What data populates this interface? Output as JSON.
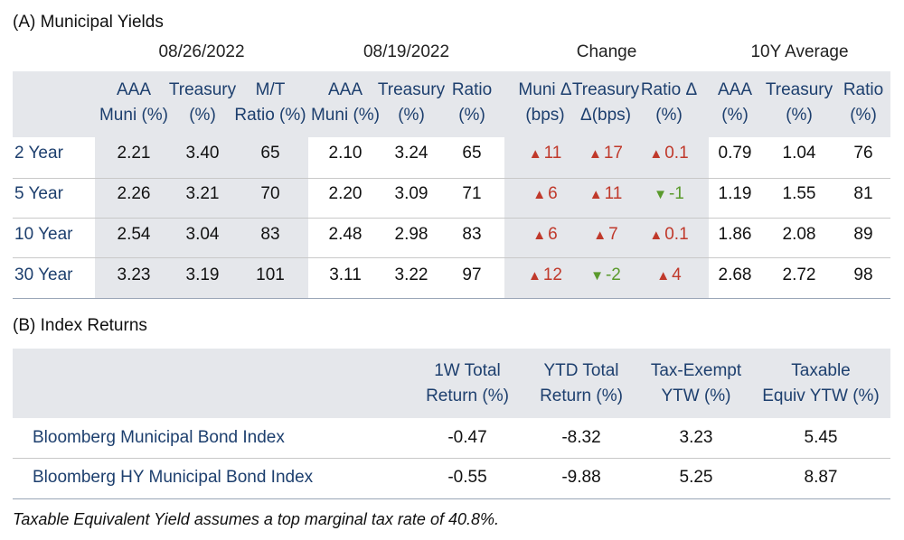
{
  "section_a": {
    "title": "(A) Municipal Yields",
    "groups": [
      "08/26/2022",
      "08/19/2022",
      "Change",
      "10Y Average"
    ],
    "headers": [
      [
        "AAA",
        "Muni (%)"
      ],
      [
        "Treasury",
        "(%)"
      ],
      [
        "M/T",
        "Ratio (%)"
      ],
      [
        "AAA",
        "Muni (%)"
      ],
      [
        "Treasury",
        "(%)"
      ],
      [
        "Ratio",
        "(%)"
      ],
      [
        "Muni Δ",
        "(bps)"
      ],
      [
        "Treasury",
        "Δ(bps)"
      ],
      [
        "Ratio Δ",
        "(%)"
      ],
      [
        "AAA",
        "(%)"
      ],
      [
        "Treasury",
        "(%)"
      ],
      [
        "Ratio",
        "(%)"
      ]
    ],
    "rows": [
      {
        "label": "2 Year",
        "v": [
          "2.21",
          "3.40",
          "65",
          "2.10",
          "3.24",
          "65"
        ],
        "chg": [
          {
            "dir": "up",
            "val": "11"
          },
          {
            "dir": "up",
            "val": "17"
          },
          {
            "dir": "up",
            "val": "0.1"
          }
        ],
        "avg": [
          "0.79",
          "1.04",
          "76"
        ]
      },
      {
        "label": "5 Year",
        "v": [
          "2.26",
          "3.21",
          "70",
          "2.20",
          "3.09",
          "71"
        ],
        "chg": [
          {
            "dir": "up",
            "val": "6"
          },
          {
            "dir": "up",
            "val": "11"
          },
          {
            "dir": "down",
            "val": "-1"
          }
        ],
        "avg": [
          "1.19",
          "1.55",
          "81"
        ]
      },
      {
        "label": "10 Year",
        "v": [
          "2.54",
          "3.04",
          "83",
          "2.48",
          "2.98",
          "83"
        ],
        "chg": [
          {
            "dir": "up",
            "val": "6"
          },
          {
            "dir": "up",
            "val": "7"
          },
          {
            "dir": "up",
            "val": "0.1"
          }
        ],
        "avg": [
          "1.86",
          "2.08",
          "89"
        ]
      },
      {
        "label": "30 Year",
        "v": [
          "3.23",
          "3.19",
          "101",
          "3.11",
          "3.22",
          "97"
        ],
        "chg": [
          {
            "dir": "up",
            "val": "12"
          },
          {
            "dir": "down",
            "val": "-2"
          },
          {
            "dir": "up",
            "val": "4"
          }
        ],
        "avg": [
          "2.68",
          "2.72",
          "98"
        ]
      }
    ]
  },
  "section_b": {
    "title": "(B) Index Returns",
    "headers": [
      [
        "1W Total",
        "Return (%)"
      ],
      [
        "YTD Total",
        "Return (%)"
      ],
      [
        "Tax-Exempt",
        "YTW (%)"
      ],
      [
        "Taxable",
        "Equiv YTW (%)"
      ]
    ],
    "rows": [
      {
        "label": "Bloomberg Municipal Bond Index",
        "v": [
          "-0.47",
          "-8.32",
          "3.23",
          "5.45"
        ]
      },
      {
        "label": "Bloomberg HY Municipal Bond Index",
        "v": [
          "-0.55",
          "-9.88",
          "5.25",
          "8.87"
        ]
      }
    ]
  },
  "footnote": "Taxable Equivalent Yield assumes a top marginal tax rate of 40.8%.",
  "colors": {
    "header_text": "#1d3f6e",
    "band": "#e5e7eb",
    "up": "#c0392b",
    "down": "#5a9a2c"
  }
}
